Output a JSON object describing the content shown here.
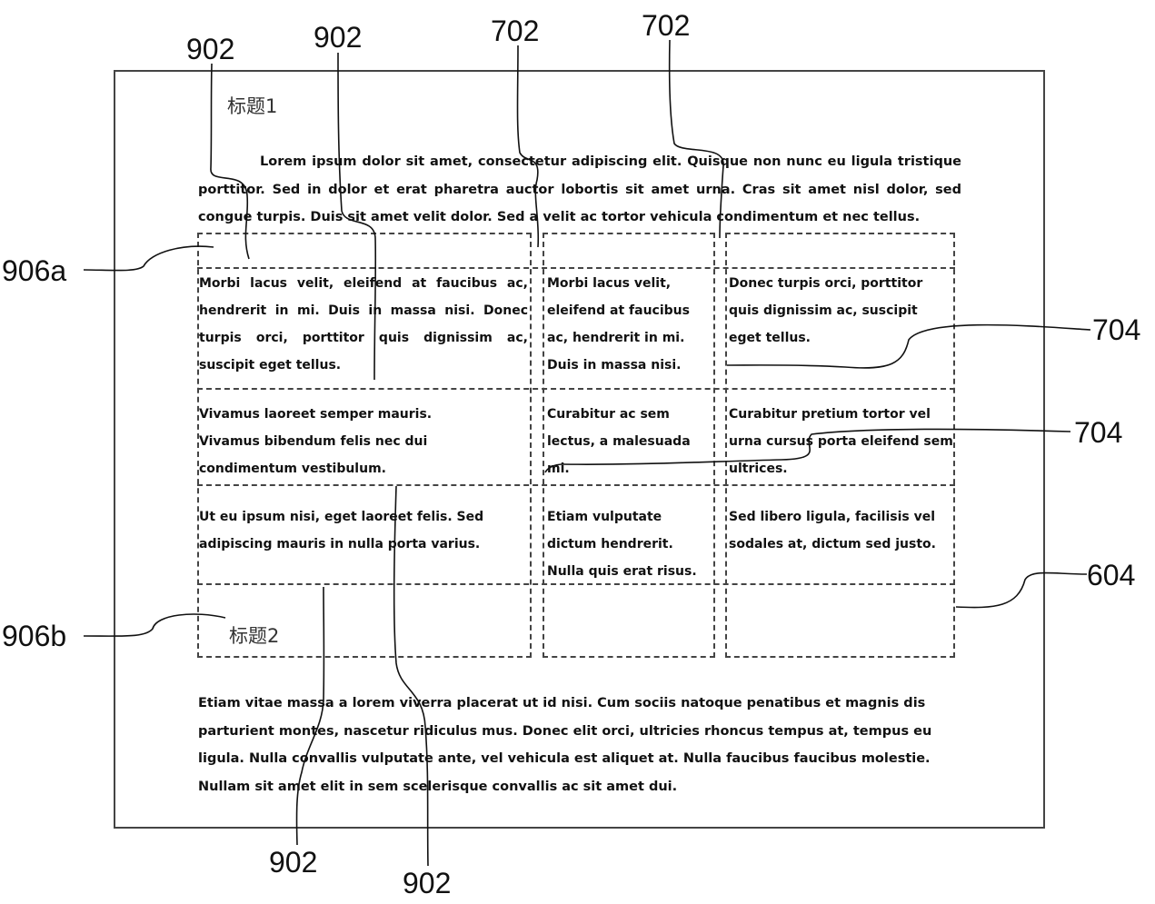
{
  "refs": {
    "r902_tl": "902",
    "r902_tc": "902",
    "r702_a": "702",
    "r702_b": "702",
    "r906a": "906a",
    "r704_a": "704",
    "r704_b": "704",
    "r604": "604",
    "r906b": "906b",
    "r902_bl": "902",
    "r902_bc": "902"
  },
  "heading1": "标题1",
  "heading2": "标题2",
  "para1": "Lorem ipsum dolor sit amet, consectetur adipiscing elit. Quisque non nunc eu ligula tristique porttitor. Sed in dolor et erat pharetra auctor lobortis sit amet urna. Cras sit amet nisl dolor, sed congue turpis. Duis sit amet velit dolor. Sed a velit ac tortor vehicula condimentum et nec tellus.",
  "table": {
    "row1": {
      "c1": "Morbi lacus velit, eleifend at faucibus ac, hendrerit in mi. Duis in massa nisi. Donec turpis orci, porttitor quis dignissim ac, suscipit eget tellus.",
      "c2": "Morbi lacus velit, eleifend at faucibus ac, hendrerit in mi. Duis in massa nisi.",
      "c3": "Donec turpis orci, porttitor quis dignissim ac, suscipit eget tellus."
    },
    "row2": {
      "c1": "Vivamus laoreet semper mauris. Vivamus bibendum felis nec dui condimentum vestibulum.",
      "c2": "Curabitur ac sem lectus, a malesuada mi.",
      "c3": "Curabitur pretium tortor vel urna cursus porta eleifend sem ultrices."
    },
    "row3": {
      "c1": "Ut eu ipsum nisi, eget laoreet felis. Sed adipiscing mauris in nulla porta varius.",
      "c2": "Etiam vulputate dictum hendrerit. Nulla quis erat risus.",
      "c3": "Sed libero ligula, facilisis vel sodales at, dictum sed justo."
    }
  },
  "para2": "Etiam vitae massa a lorem viverra placerat ut id nisi. Cum sociis natoque penatibus et magnis dis parturient montes, nascetur ridiculus mus. Donec elit orci, ultricies rhoncus tempus at, tempus eu ligula. Nulla convallis vulputate ante, vel vehicula est aliquet at. Nulla faucibus faucibus molestie. Nullam sit amet elit in sem scelerisque convallis ac sit amet dui."
}
